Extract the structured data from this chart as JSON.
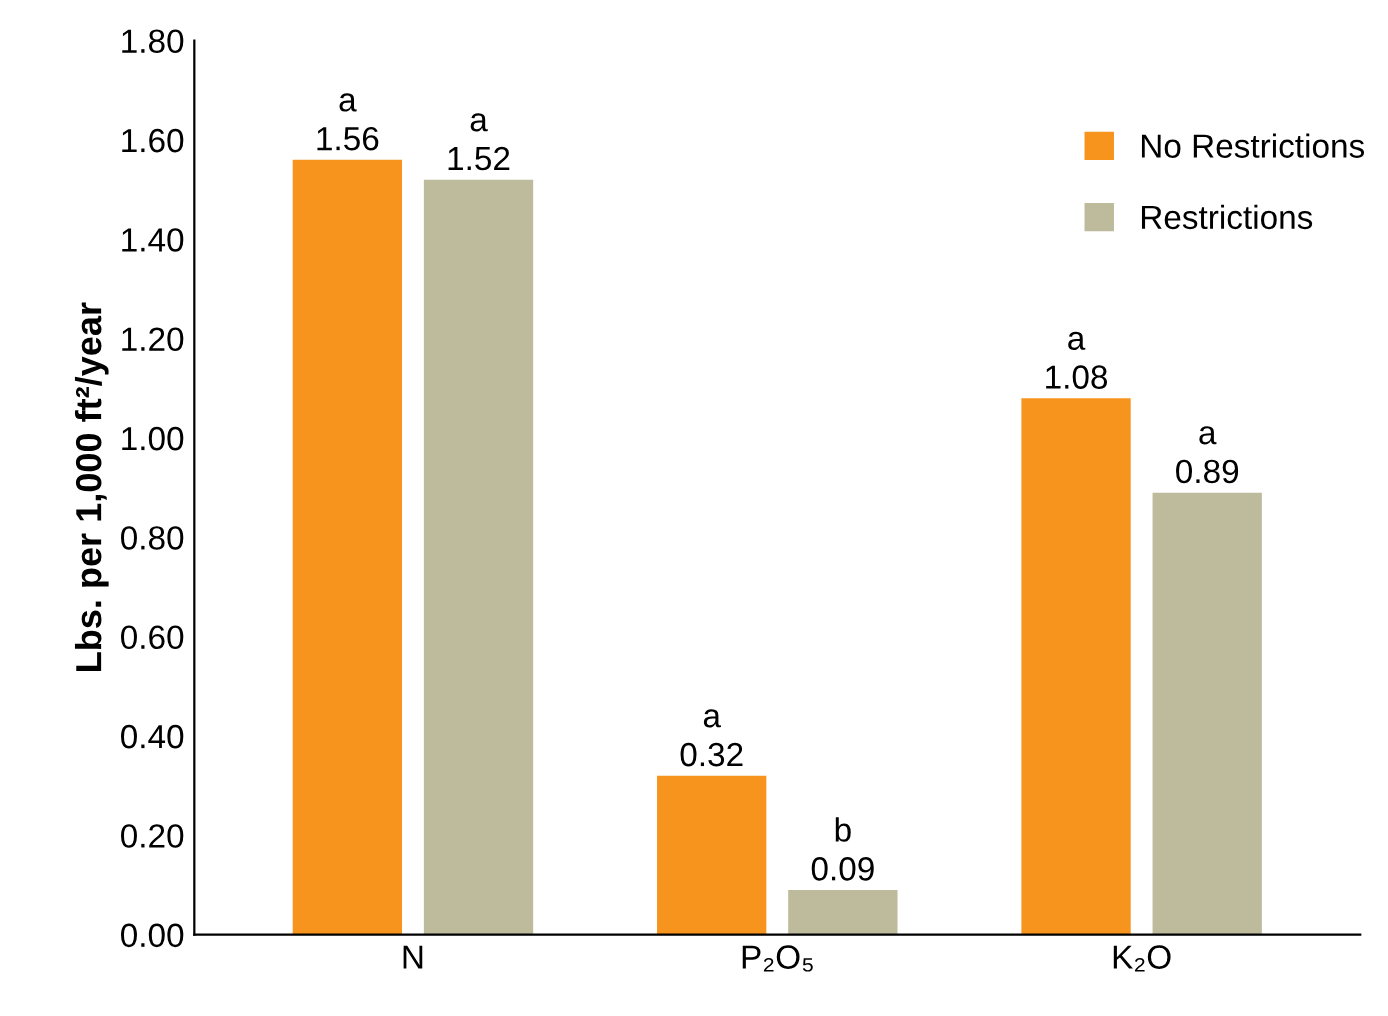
{
  "chart_data": {
    "type": "bar",
    "ylabel": "Lbs. per 1,000 ft²/year",
    "categories": [
      "N",
      "P₂O₅",
      "K₂O"
    ],
    "series": [
      {
        "name": "No Restrictions",
        "color": "#f7941d",
        "values": [
          1.56,
          0.32,
          1.08
        ]
      },
      {
        "name": "Restrictions",
        "color": "#bdbb9c",
        "values": [
          1.52,
          0.09,
          0.89
        ]
      }
    ],
    "ylim": [
      0,
      1.8
    ],
    "yticks": [
      {
        "value": 0,
        "label": "0.00"
      },
      {
        "value": 0.2,
        "label": "0.20"
      },
      {
        "value": 0.4,
        "label": "0.40"
      },
      {
        "value": 0.6,
        "label": "0.60"
      },
      {
        "value": 0.8,
        "label": "0.80"
      },
      {
        "value": 1.0,
        "label": "1.00"
      },
      {
        "value": 1.2,
        "label": "1.20"
      },
      {
        "value": 1.4,
        "label": "1.40"
      },
      {
        "value": 1.6,
        "label": "1.60"
      },
      {
        "value": 1.8,
        "label": "1.80"
      }
    ],
    "data_labels": true,
    "annotations": [
      "a",
      "a",
      "a",
      "b",
      "a",
      "a"
    ],
    "grid": false,
    "legend": "top right"
  }
}
